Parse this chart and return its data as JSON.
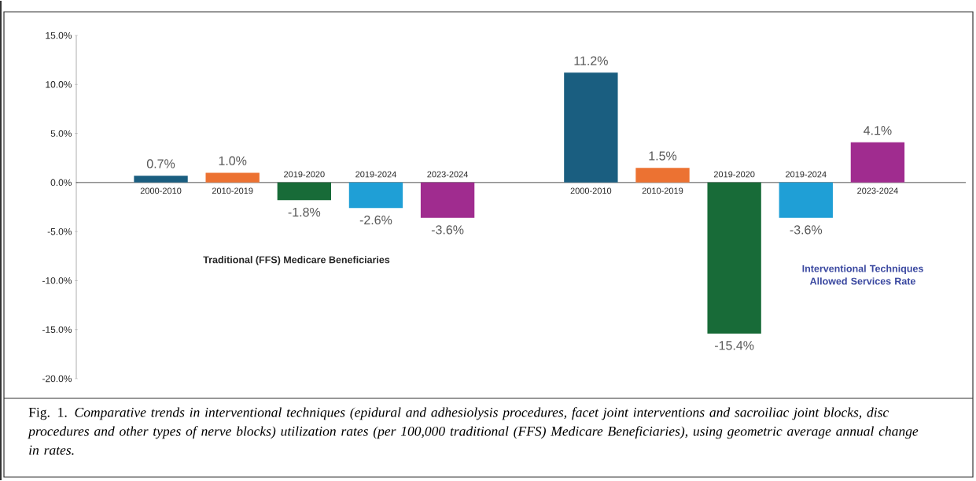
{
  "chart_data": {
    "type": "bar",
    "categories": [
      "2000-2010",
      "2010-2019",
      "2019-2020",
      "2019-2024",
      "2023-2024",
      null,
      "2000-2010",
      "2010-2019",
      "2019-2020",
      "2019-2024",
      "2023-2024"
    ],
    "values": [
      0.7,
      1.0,
      -1.8,
      -2.6,
      -3.6,
      null,
      11.2,
      1.5,
      -15.4,
      -3.6,
      4.1
    ],
    "value_labels": [
      "0.7%",
      "1.0%",
      "-1.8%",
      "-2.6%",
      "-3.6%",
      null,
      "11.2%",
      "1.5%",
      "-15.4%",
      "-3.6%",
      "4.1%"
    ],
    "colors": [
      "#1a5e80",
      "#ec7232",
      "#186b38",
      "#1f9fd6",
      "#a02c8f",
      null,
      "#1a5e80",
      "#ec7232",
      "#186b38",
      "#1f9fd6",
      "#a02c8f"
    ],
    "ylim": [
      -20,
      15
    ],
    "yticks": [
      {
        "value": -20,
        "label": "-20.0%"
      },
      {
        "value": -15,
        "label": "-15.0%"
      },
      {
        "value": -10,
        "label": "-10.0%"
      },
      {
        "value": -5,
        "label": "-5.0%"
      },
      {
        "value": 0,
        "label": "0.0%"
      },
      {
        "value": 5,
        "label": "5.0%"
      },
      {
        "value": 10,
        "label": "10.0%"
      },
      {
        "value": 15,
        "label": "15.0%"
      }
    ],
    "annotations": [
      "Traditional (FFS) Medicare Beneficiaries",
      "Interventional Techniques Allowed Services Rate",
      "Fig. 1. *Comparative trends in interventional techniques (epidural and adhesiolysis procedures, facet joint interventions and sacroiliac joint blocks, disc procedures and other types of nerve blocks) utilization rates (per 100,000 traditional (FFS) Medicare Beneficiaries), using geometric average annual change in rates.*"
    ]
  }
}
